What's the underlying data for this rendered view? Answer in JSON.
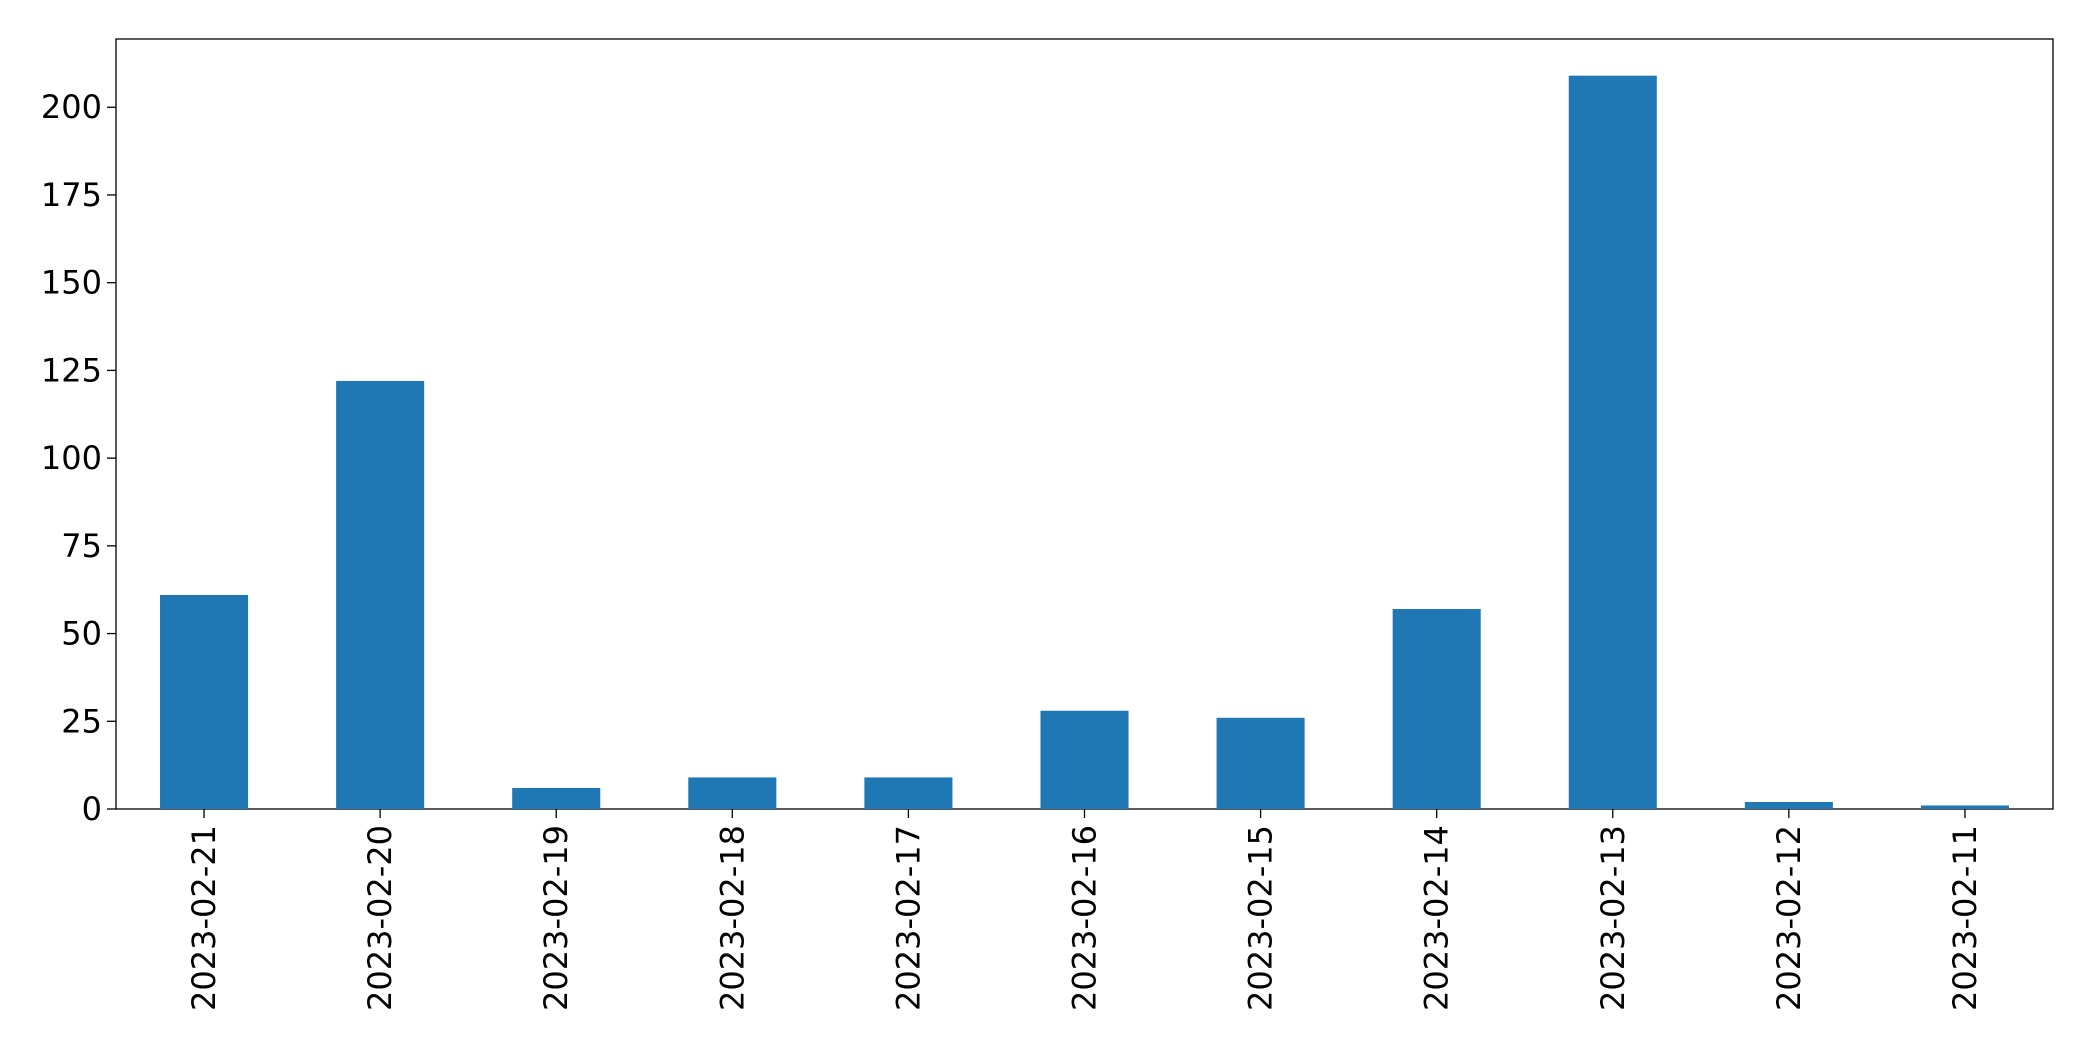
{
  "chart_data": {
    "type": "bar",
    "categories": [
      "2023-02-21",
      "2023-02-20",
      "2023-02-19",
      "2023-02-18",
      "2023-02-17",
      "2023-02-16",
      "2023-02-15",
      "2023-02-14",
      "2023-02-13",
      "2023-02-12",
      "2023-02-11"
    ],
    "values": [
      61,
      122,
      6,
      9,
      9,
      28,
      26,
      57,
      209,
      2,
      1
    ],
    "color": "#1f77b4",
    "ylim": [
      0,
      219.45
    ],
    "yticks": [
      0,
      25,
      50,
      75,
      100,
      125,
      150,
      175,
      200
    ],
    "grid": false
  }
}
